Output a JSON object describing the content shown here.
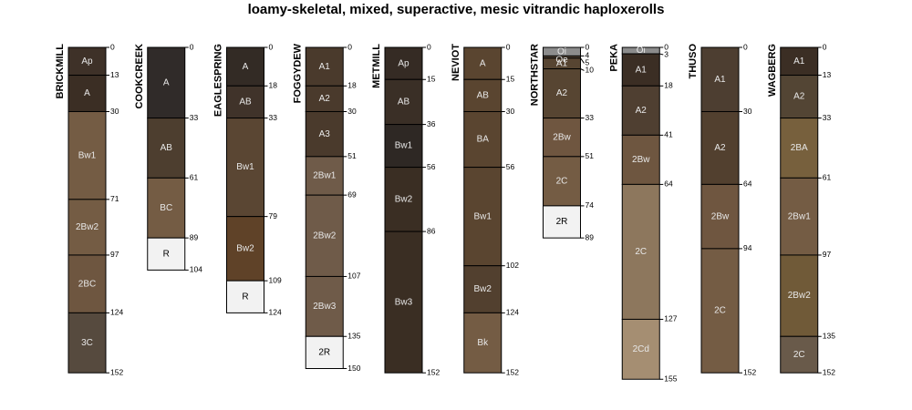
{
  "chart_data": {
    "type": "soil-profile-sketch",
    "title": "loamy-skeletal, mixed, superactive, mesic vitrandic haploxerolls",
    "depth_units": "cm",
    "ylim": [
      0,
      155
    ],
    "profiles": [
      {
        "name": "BRICKMILL",
        "horizons": [
          {
            "name": "Ap",
            "top": 0,
            "bottom": 13,
            "color": "#3e3128"
          },
          {
            "name": "A",
            "top": 13,
            "bottom": 30,
            "color": "#3b2e24"
          },
          {
            "name": "Bw1",
            "top": 30,
            "bottom": 71,
            "color": "#745c44"
          },
          {
            "name": "2Bw2",
            "top": 71,
            "bottom": 97,
            "color": "#745c44"
          },
          {
            "name": "2BC",
            "top": 97,
            "bottom": 124,
            "color": "#6e5640"
          },
          {
            "name": "3C",
            "top": 124,
            "bottom": 152,
            "color": "#564a3e"
          }
        ]
      },
      {
        "name": "COOKCREEK",
        "horizons": [
          {
            "name": "A",
            "top": 0,
            "bottom": 33,
            "color": "#302b29"
          },
          {
            "name": "AB",
            "top": 33,
            "bottom": 61,
            "color": "#4d3e2f"
          },
          {
            "name": "BC",
            "top": 61,
            "bottom": 89,
            "color": "#745c44"
          },
          {
            "name": "R",
            "top": 89,
            "bottom": 104,
            "color": "#f2f2f2"
          }
        ]
      },
      {
        "name": "EAGLESPRING",
        "horizons": [
          {
            "name": "A",
            "top": 0,
            "bottom": 18,
            "color": "#332b25"
          },
          {
            "name": "AB",
            "top": 18,
            "bottom": 33,
            "color": "#40332a"
          },
          {
            "name": "Bw1",
            "top": 33,
            "bottom": 79,
            "color": "#5a4633"
          },
          {
            "name": "Bw2",
            "top": 79,
            "bottom": 109,
            "color": "#5f4228"
          },
          {
            "name": "R",
            "top": 109,
            "bottom": 124,
            "color": "#f2f2f2"
          }
        ]
      },
      {
        "name": "FOGGYDEW",
        "horizons": [
          {
            "name": "A1",
            "top": 0,
            "bottom": 18,
            "color": "#4a3a2c"
          },
          {
            "name": "A2",
            "top": 18,
            "bottom": 30,
            "color": "#4a3a2c"
          },
          {
            "name": "A3",
            "top": 30,
            "bottom": 51,
            "color": "#4a3a2c"
          },
          {
            "name": "2Bw1",
            "top": 51,
            "bottom": 69,
            "color": "#6f5b49"
          },
          {
            "name": "2Bw2",
            "top": 69,
            "bottom": 107,
            "color": "#6f5b49"
          },
          {
            "name": "2Bw3",
            "top": 107,
            "bottom": 135,
            "color": "#6f5b49"
          },
          {
            "name": "2R",
            "top": 135,
            "bottom": 150,
            "color": "#f2f2f2"
          }
        ]
      },
      {
        "name": "METMILL",
        "horizons": [
          {
            "name": "Ap",
            "top": 0,
            "bottom": 15,
            "color": "#352b24"
          },
          {
            "name": "AB",
            "top": 15,
            "bottom": 36,
            "color": "#3a2f26"
          },
          {
            "name": "Bw1",
            "top": 36,
            "bottom": 56,
            "color": "#2e2824"
          },
          {
            "name": "Bw2",
            "top": 56,
            "bottom": 86,
            "color": "#3a2e23"
          },
          {
            "name": "Bw3",
            "top": 86,
            "bottom": 152,
            "color": "#3a2e23"
          }
        ]
      },
      {
        "name": "NEVIOT",
        "horizons": [
          {
            "name": "A",
            "top": 0,
            "bottom": 15,
            "color": "#5a4530"
          },
          {
            "name": "AB",
            "top": 15,
            "bottom": 30,
            "color": "#5a4530"
          },
          {
            "name": "BA",
            "top": 30,
            "bottom": 56,
            "color": "#5a4530"
          },
          {
            "name": "Bw1",
            "top": 56,
            "bottom": 102,
            "color": "#5a4530"
          },
          {
            "name": "Bw2",
            "top": 102,
            "bottom": 124,
            "color": "#52402f"
          },
          {
            "name": "Bk",
            "top": 124,
            "bottom": 152,
            "color": "#745c44"
          }
        ]
      },
      {
        "name": "NORTHSTAR",
        "horizons": [
          {
            "name": "Oi",
            "top": 0,
            "bottom": 4,
            "color": "#8c8c8c"
          },
          {
            "name": "Oe",
            "top": 4,
            "bottom": 5,
            "color": "#5a4a3a"
          },
          {
            "name": "A1",
            "top": 5,
            "bottom": 10,
            "color": "#574532"
          },
          {
            "name": "A2",
            "top": 10,
            "bottom": 33,
            "color": "#574532"
          },
          {
            "name": "2Bw",
            "top": 33,
            "bottom": 51,
            "color": "#6f5640"
          },
          {
            "name": "2C",
            "top": 51,
            "bottom": 74,
            "color": "#745c44"
          },
          {
            "name": "2R",
            "top": 74,
            "bottom": 89,
            "color": "#f2f2f2"
          }
        ]
      },
      {
        "name": "PEKA",
        "horizons": [
          {
            "name": "Oi",
            "top": 0,
            "bottom": 3,
            "color": "#8c8c8c"
          },
          {
            "name": "A1",
            "top": 3,
            "bottom": 18,
            "color": "#3b2e24"
          },
          {
            "name": "A2",
            "top": 18,
            "bottom": 41,
            "color": "#4f3f31"
          },
          {
            "name": "2Bw",
            "top": 41,
            "bottom": 64,
            "color": "#6e5640"
          },
          {
            "name": "2C",
            "top": 64,
            "bottom": 127,
            "color": "#8d775d"
          },
          {
            "name": "2Cd",
            "top": 127,
            "bottom": 155,
            "color": "#a58e72"
          }
        ]
      },
      {
        "name": "THUSO",
        "horizons": [
          {
            "name": "A1",
            "top": 0,
            "bottom": 30,
            "color": "#4d3e31"
          },
          {
            "name": "A2",
            "top": 30,
            "bottom": 64,
            "color": "#52402f"
          },
          {
            "name": "2Bw",
            "top": 64,
            "bottom": 94,
            "color": "#6f5640"
          },
          {
            "name": "2C",
            "top": 94,
            "bottom": 152,
            "color": "#745c44"
          }
        ]
      },
      {
        "name": "WAGBERG",
        "horizons": [
          {
            "name": "A1",
            "top": 0,
            "bottom": 13,
            "color": "#3b2e24"
          },
          {
            "name": "A2",
            "top": 13,
            "bottom": 33,
            "color": "#534534"
          },
          {
            "name": "2BA",
            "top": 33,
            "bottom": 61,
            "color": "#77603d"
          },
          {
            "name": "2Bw1",
            "top": 61,
            "bottom": 97,
            "color": "#745c44"
          },
          {
            "name": "2Bw2",
            "top": 97,
            "bottom": 135,
            "color": "#705a38"
          },
          {
            "name": "2C",
            "top": 135,
            "bottom": 152,
            "color": "#695a4a"
          }
        ]
      }
    ]
  }
}
